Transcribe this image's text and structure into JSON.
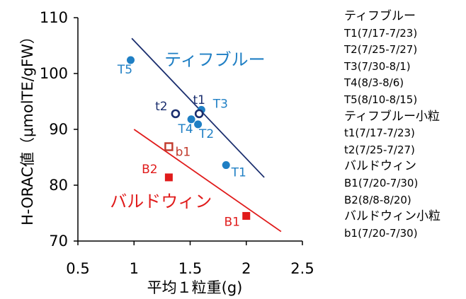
{
  "chart_data": {
    "type": "scatter",
    "xlabel": "平均１粒重(g)",
    "ylabel": "H-ORAC値（μmolTE/gFW）",
    "xlim": [
      0.5,
      2.5
    ],
    "ylim": [
      70,
      110
    ],
    "xticks": [
      "0.5",
      "1",
      "1.5",
      "2",
      "2.5"
    ],
    "yticks": [
      "70",
      "80",
      "90",
      "100",
      "110"
    ],
    "series": [
      {
        "name": "ティフブルー",
        "color": "#1f7fc4",
        "marker": "filled-circle",
        "points": [
          {
            "label": "T1",
            "x": 1.82,
            "y": 83.6
          },
          {
            "label": "T2",
            "x": 1.57,
            "y": 90.9
          },
          {
            "label": "T3",
            "x": 1.6,
            "y": 93.5
          },
          {
            "label": "T4",
            "x": 1.51,
            "y": 91.8
          },
          {
            "label": "T5",
            "x": 0.97,
            "y": 102.4
          }
        ]
      },
      {
        "name": "ティフブルー小粒",
        "color": "#1a2e6e",
        "marker": "open-circle",
        "points": [
          {
            "label": "t1",
            "x": 1.58,
            "y": 92.8
          },
          {
            "label": "t2",
            "x": 1.37,
            "y": 92.8
          }
        ]
      },
      {
        "name": "バルドウィン",
        "color": "#e01b1b",
        "marker": "filled-square",
        "points": [
          {
            "label": "B1",
            "x": 2.0,
            "y": 74.5
          },
          {
            "label": "B2",
            "x": 1.31,
            "y": 81.4
          }
        ]
      },
      {
        "name": "バルドウィン小粒",
        "color": "#c0392b",
        "marker": "open-square",
        "points": [
          {
            "label": "b1",
            "x": 1.31,
            "y": 86.9
          }
        ]
      }
    ],
    "trendlines": [
      {
        "series": "ティフブルー",
        "color": "#1a2e6e",
        "from": [
          0.98,
          106.3
        ],
        "to": [
          2.16,
          81.4
        ]
      },
      {
        "series": "バルドウィン",
        "color": "#e01b1b",
        "from": [
          1.0,
          90.0
        ],
        "to": [
          2.31,
          71.7
        ]
      }
    ],
    "annotations": [
      {
        "text": "ティフブルー",
        "color": "#1f7fc4",
        "x": 1.72,
        "y": 102.5
      },
      {
        "text": "バルドウィン",
        "color": "#e01b1b",
        "x": 1.24,
        "y": 77.1
      }
    ],
    "legend": {
      "placement": "right",
      "groups": [
        {
          "title": "ティフブルー",
          "entries": [
            "T1(7/17-7/23)",
            "T2(7/25-7/27)",
            "T3(7/30-8/1)",
            "T4(8/3-8/6)",
            "T5(8/10-8/15)"
          ]
        },
        {
          "title": "ティフブルー小粒",
          "entries": [
            "t1(7/17-7/23)",
            "t2(7/25-7/27)"
          ]
        },
        {
          "title": "バルドウィン",
          "entries": [
            "B1(7/20-7/30)",
            "B2(8/8-8/20)"
          ]
        },
        {
          "title": "バルドウィン小粒",
          "entries": [
            "b1(7/20-7/30)"
          ]
        }
      ]
    },
    "grid": false
  }
}
